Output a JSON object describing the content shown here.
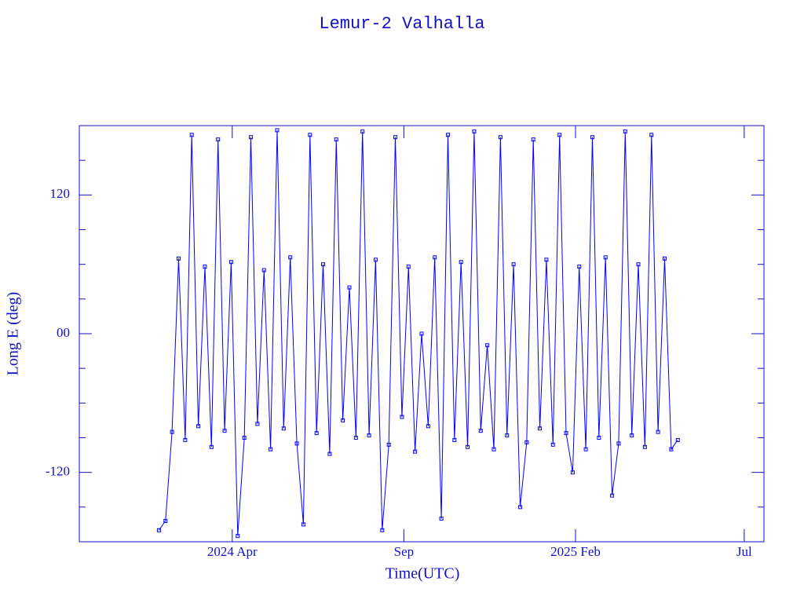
{
  "chart_data": {
    "type": "line",
    "title": "Lemur-2 Valhalla",
    "x_label": "Time(UTC)",
    "y_label": "Long E (deg)",
    "xlim": [
      2023.876,
      2025.544
    ],
    "xticks": [
      {
        "value": 2024.2486,
        "label": "2024 Apr"
      },
      {
        "value": 2024.6667,
        "label": "Sep"
      },
      {
        "value": 2025.0849,
        "label": "2025 Feb"
      },
      {
        "value": 2025.4959,
        "label": "Jul"
      }
    ],
    "ylim": [
      -180,
      180
    ],
    "yticks": [
      -120,
      {
        "value": 0,
        "label": "00"
      },
      120
    ],
    "yminor_ticks": [
      -150,
      -90,
      -60,
      -30,
      30,
      60,
      90,
      150
    ],
    "grid": false,
    "series": [
      {
        "name": "Lemur-2 Valhalla",
        "color": "#0000ff",
        "x": [
          2024.07,
          2024.086,
          2024.102,
          2024.118,
          2024.134,
          2024.15,
          2024.166,
          2024.182,
          2024.198,
          2024.214,
          2024.23,
          2024.246,
          2024.262,
          2024.278,
          2024.294,
          2024.31,
          2024.326,
          2024.342,
          2024.358,
          2024.374,
          2024.39,
          2024.406,
          2024.422,
          2024.438,
          2024.454,
          2024.47,
          2024.486,
          2024.502,
          2024.518,
          2024.534,
          2024.55,
          2024.566,
          2024.582,
          2024.598,
          2024.614,
          2024.63,
          2024.646,
          2024.662,
          2024.678,
          2024.694,
          2024.71,
          2024.726,
          2024.742,
          2024.758,
          2024.774,
          2024.79,
          2024.806,
          2024.822,
          2024.838,
          2024.854,
          2024.87,
          2024.886,
          2024.902,
          2024.918,
          2024.934,
          2024.95,
          2024.966,
          2024.982,
          2024.998,
          2025.014,
          2025.03,
          2025.046,
          2025.062,
          2025.078,
          2025.094,
          2025.11,
          2025.126,
          2025.142,
          2025.158,
          2025.174,
          2025.19,
          2025.206,
          2025.222,
          2025.238,
          2025.254,
          2025.27,
          2025.286,
          2025.302,
          2025.318,
          2025.334
        ],
        "values": [
          -170,
          -162,
          -85,
          65,
          -92,
          172,
          -80,
          58,
          -98,
          168,
          -84,
          62,
          -175,
          -90,
          170,
          -78,
          55,
          -100,
          176,
          -82,
          66,
          -95,
          -165,
          172,
          -86,
          60,
          -104,
          168,
          -75,
          40,
          -90,
          175,
          -88,
          64,
          -170,
          -96,
          170,
          -72,
          58,
          -102,
          0,
          -80,
          66,
          -160,
          172,
          -92,
          62,
          -98,
          175,
          -84,
          -10,
          -100,
          170,
          -88,
          60,
          -150,
          -94,
          168,
          -82,
          64,
          -96,
          172,
          -86,
          -120,
          58,
          -100,
          170,
          -90,
          66,
          -140,
          -95,
          175,
          -88,
          60,
          -98,
          172,
          -85,
          65,
          -100,
          -92
        ]
      }
    ]
  }
}
